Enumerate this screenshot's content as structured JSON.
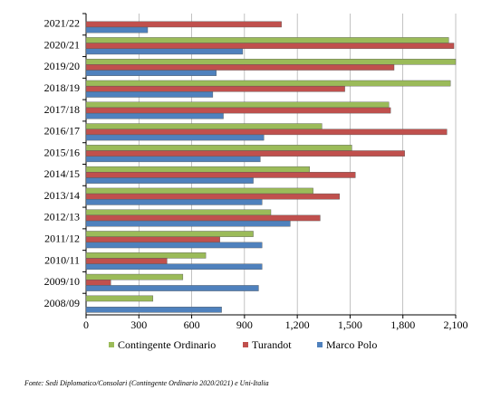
{
  "chart_data": {
    "type": "hbar",
    "categories": [
      "2021/22",
      "2020/21",
      "2019/20",
      "2018/19",
      "2017/18",
      "2016/17",
      "2015/16",
      "2014/15",
      "2013/14",
      "2012/13",
      "2011/12",
      "2010/11",
      "2009/10",
      "2008/09"
    ],
    "series": [
      {
        "name": "Contingente Ordinario",
        "color": "#9bbb59",
        "values": [
          null,
          2060,
          2100,
          2070,
          1720,
          1340,
          1510,
          1270,
          1290,
          1050,
          950,
          680,
          550,
          380
        ]
      },
      {
        "name": "Turandot",
        "color": "#c0504d",
        "values": [
          1110,
          2090,
          1750,
          1470,
          1730,
          2050,
          1810,
          1530,
          1440,
          1330,
          760,
          460,
          140,
          null
        ]
      },
      {
        "name": "Marco Polo",
        "color": "#4f81bd",
        "values": [
          350,
          890,
          740,
          720,
          780,
          1010,
          990,
          950,
          1000,
          1160,
          1000,
          1000,
          980,
          770
        ]
      }
    ],
    "xlim": [
      0,
      2100
    ],
    "xticks": [
      0,
      300,
      600,
      900,
      {
        "value": 1200,
        "label": "1,200"
      },
      {
        "value": 1500,
        "label": "1,500"
      },
      {
        "value": 1800,
        "label": "1,800"
      },
      {
        "value": 2100,
        "label": "2,100"
      }
    ],
    "grid": true,
    "legend": "bottom",
    "source": "Fonte: Sedi Diplomatico/Consolari (Contingente Ordinario 2020/2021) e Uni-Italia"
  }
}
